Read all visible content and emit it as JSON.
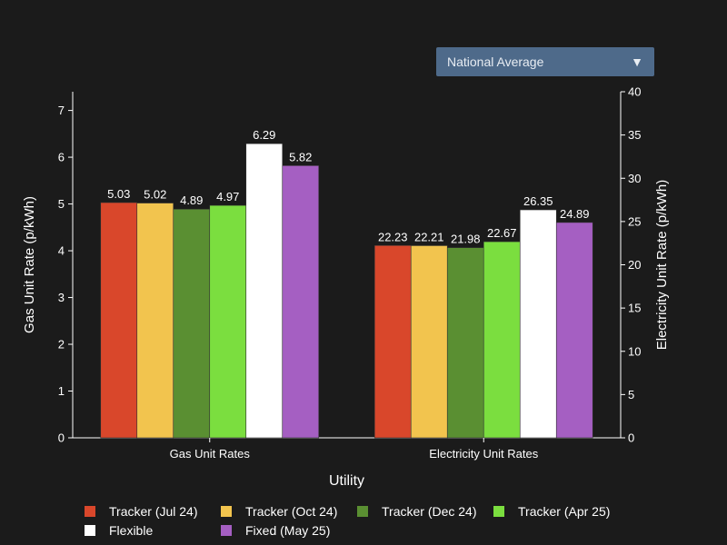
{
  "selector": {
    "selected": "National Average",
    "arrow_icon": "chevron-down-icon"
  },
  "chart_data": {
    "type": "bar",
    "title": "",
    "xlabel": "Utility",
    "ylabel_left": "Gas Unit Rate (p/kWh)",
    "ylabel_right": "Electricity Unit Rate (p/kWh)",
    "categories": [
      "Gas Unit Rates",
      "Electricity Unit Rates"
    ],
    "category_axis": [
      "left",
      "right"
    ],
    "ylim_left": [
      0,
      7.4
    ],
    "ylim_right": [
      0,
      40
    ],
    "yticks_left": [
      0,
      1,
      2,
      3,
      4,
      5,
      6,
      7
    ],
    "yticks_right": [
      0,
      5,
      10,
      15,
      20,
      25,
      30,
      35,
      40
    ],
    "legend_position": "bottom",
    "grid": false,
    "series": [
      {
        "name": "Tracker (Jul 24)",
        "color": "#d9472b",
        "values": [
          5.03,
          22.23
        ]
      },
      {
        "name": "Tracker (Oct 24)",
        "color": "#f2c44e",
        "values": [
          5.02,
          22.21
        ]
      },
      {
        "name": "Tracker (Dec 24)",
        "color": "#5a8f32",
        "values": [
          4.89,
          21.98
        ]
      },
      {
        "name": "Tracker (Apr 25)",
        "color": "#7bde3f",
        "values": [
          4.97,
          22.67
        ]
      },
      {
        "name": "Flexible",
        "color": "#ffffff",
        "values": [
          6.29,
          26.35
        ]
      },
      {
        "name": "Fixed (May 25)",
        "color": "#a55fc2",
        "values": [
          5.82,
          24.89
        ]
      }
    ]
  }
}
